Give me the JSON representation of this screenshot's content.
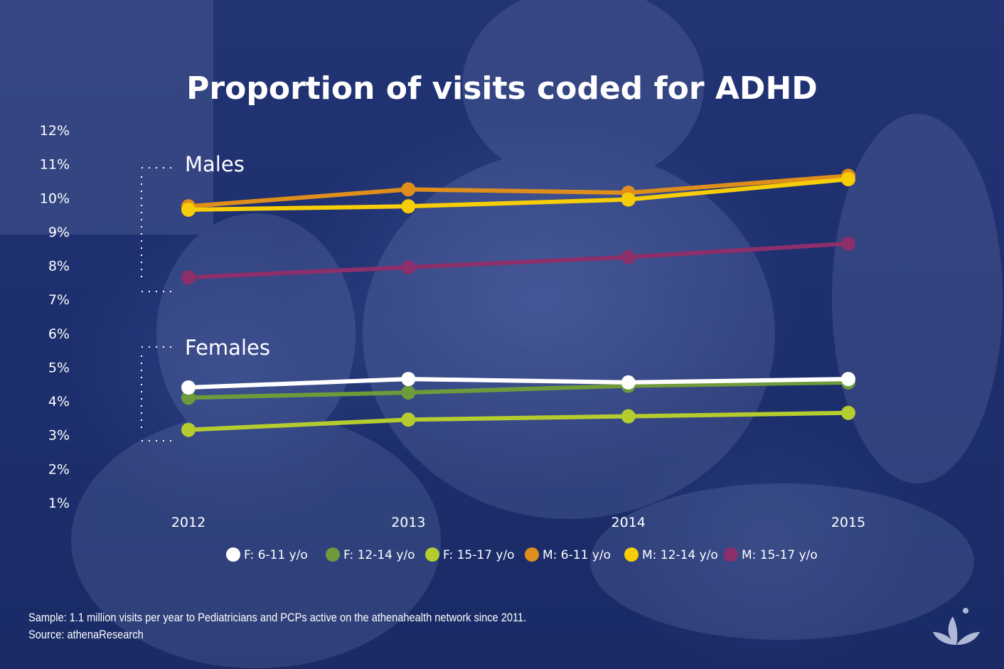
{
  "colors": {
    "F: 6-11 y/o": "#ffffff",
    "F: 12-14 y/o": "#6e9a3b",
    "F: 15-17 y/o": "#b5cc2f",
    "M: 6-11 y/o": "#e08e1b",
    "M: 12-14 y/o": "#f6cd06",
    "M: 15-17 y/o": "#8c2f6b",
    "background": "#1e2f6d"
  },
  "chart_data": {
    "type": "line",
    "title": "Proportion of visits coded for ADHD",
    "xlabel": "",
    "ylabel": "",
    "x": [
      "2012",
      "2013",
      "2014",
      "2015"
    ],
    "y_ticks": [
      "12%",
      "11%",
      "10%",
      "9%",
      "8%",
      "7%",
      "6%",
      "5%",
      "4%",
      "3%",
      "2%",
      "1%"
    ],
    "ylim": [
      1,
      12
    ],
    "y_unit": "%",
    "grid": false,
    "legend_position": "bottom",
    "group_labels": [
      "Males",
      "Females"
    ],
    "series": [
      {
        "name": "F: 6-11 y/o",
        "values": [
          4.4,
          4.65,
          4.55,
          4.65
        ]
      },
      {
        "name": "F: 12-14 y/o",
        "values": [
          4.1,
          4.25,
          4.45,
          4.55
        ]
      },
      {
        "name": "F: 15-17 y/o",
        "values": [
          3.15,
          3.45,
          3.55,
          3.65
        ]
      },
      {
        "name": "M: 6-11 y/o",
        "values": [
          9.75,
          10.25,
          10.15,
          10.65
        ]
      },
      {
        "name": "M: 12-14 y/o",
        "values": [
          9.65,
          9.75,
          9.95,
          10.55
        ]
      },
      {
        "name": "M: 15-17 y/o",
        "values": [
          7.65,
          7.95,
          8.25,
          8.65
        ]
      }
    ]
  },
  "footnotes": {
    "sample": "Sample: 1.1 million visits per year to Pediatricians and PCPs active on the athenahealth network since 2011.",
    "source": "Source: athenaResearch"
  },
  "icons": {
    "brand_logo": "athenahealth-leaf-logo-icon"
  }
}
